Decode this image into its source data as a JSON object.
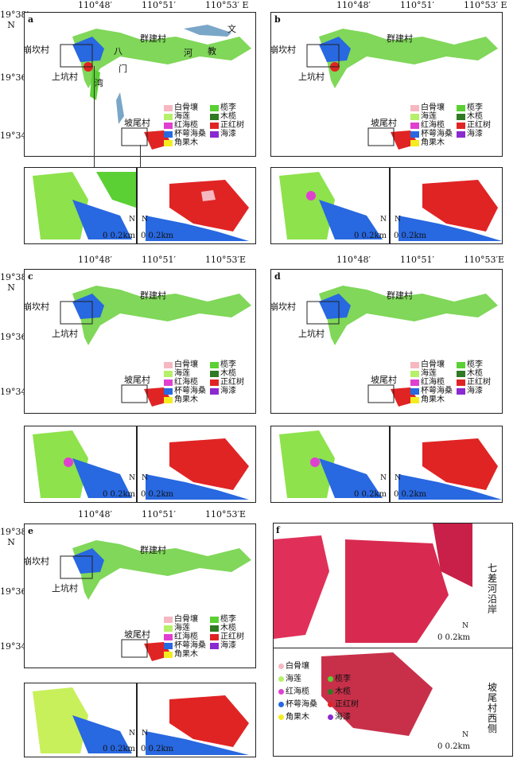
{
  "axis": {
    "lon_ticks": [
      "110°48′",
      "110°51′",
      "110°53′E"
    ],
    "lon_ticks_spaced": [
      "110°48′",
      "110°51′",
      "110°53′ E"
    ],
    "lat_ticks": [
      "19°38′",
      "N",
      "19°36′",
      "19°34′"
    ]
  },
  "places": {
    "bengkan": "崩坎村",
    "shangkeng": "上坑村",
    "qunjian": "群建村",
    "powei": "坡尾村",
    "ba": "八",
    "men": "门",
    "wan": "湾",
    "wen": "文",
    "jiao": "教",
    "he": "河"
  },
  "legend": [
    {
      "label": "白骨壤",
      "color": "#f6b8c0"
    },
    {
      "label": "海莲",
      "color": "#b6f06a"
    },
    {
      "label": "红海榄",
      "color": "#e040d0"
    },
    {
      "label": "杯萼海桑",
      "color": "#2868e0"
    },
    {
      "label": "角果木",
      "color": "#f4ec20"
    },
    {
      "label": "榄李",
      "color": "#5ad034"
    },
    {
      "label": "木榄",
      "color": "#2f7a22"
    },
    {
      "label": "正红树",
      "color": "#e02424"
    },
    {
      "label": "海漆",
      "color": "#8a2ad0"
    }
  ],
  "panels": [
    {
      "id": "a"
    },
    {
      "id": "b"
    },
    {
      "id": "c"
    },
    {
      "id": "d"
    },
    {
      "id": "e"
    }
  ],
  "scale_label": "0 0.2km",
  "north": "N",
  "panel_f": {
    "id": "f",
    "top_caption": "七差河沿岸",
    "bottom_caption": "坡尾村西侧"
  }
}
